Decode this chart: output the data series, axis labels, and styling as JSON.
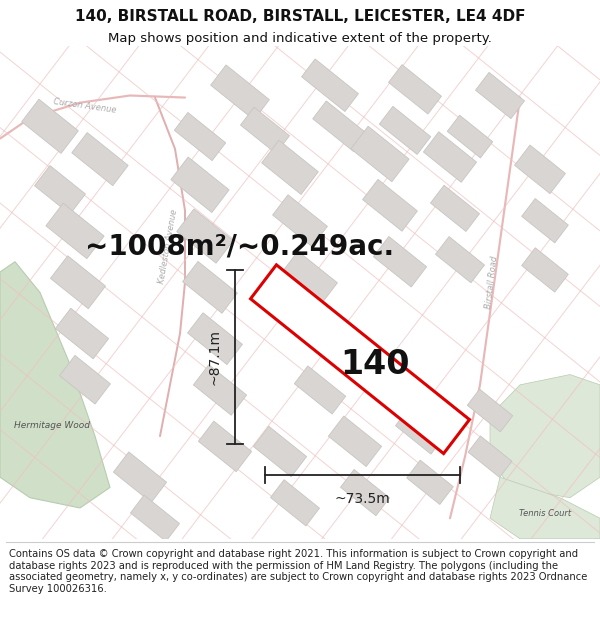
{
  "title_line1": "140, BIRSTALL ROAD, BIRSTALL, LEICESTER, LE4 4DF",
  "title_line2": "Map shows position and indicative extent of the property.",
  "area_label": "~1008m²/~0.249ac.",
  "plot_number": "140",
  "width_label": "~73.5m",
  "height_label": "~87.1m",
  "copyright_text": "Contains OS data © Crown copyright and database right 2021. This information is subject to Crown copyright and database rights 2023 and is reproduced with the permission of HM Land Registry. The polygons (including the associated geometry, namely x, y co-ordinates) are subject to Crown copyright and database rights 2023 Ordnance Survey 100026316.",
  "map_bg": "#f8f6f3",
  "road_color": "#f0c8c8",
  "building_color": "#d8d5d2",
  "building_edge": "#c8c5c2",
  "plot_outline_color": "#dd0000",
  "green_color": "#d0dfc8",
  "green_edge": "#b8ccb0",
  "green2_color": "#dde8d8",
  "dim_color": "#222222",
  "label_color": "#aaaaaa",
  "title_fontsize": 11,
  "subtitle_fontsize": 9.5,
  "area_fontsize": 20,
  "plot_num_fontsize": 24,
  "dim_fontsize": 10,
  "copyright_fontsize": 7.2
}
